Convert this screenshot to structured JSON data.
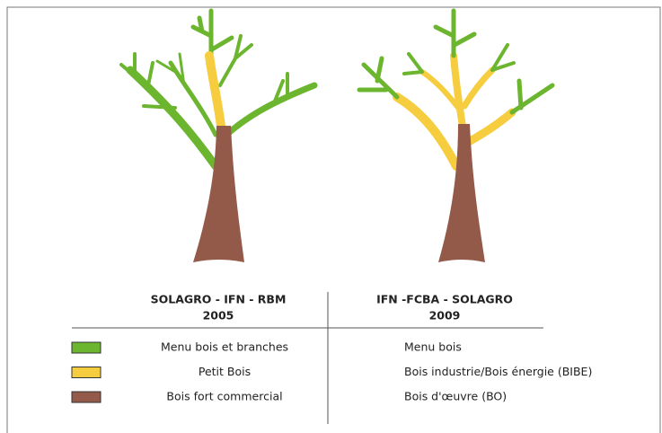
{
  "columns": [
    {
      "title": "SOLAGRO - IFN - RBM",
      "year": "2005"
    },
    {
      "title": "IFN -FCBA - SOLAGRO",
      "year": "2009"
    }
  ],
  "legend": [
    {
      "color": "#6cb52f",
      "labels": [
        "Menu bois et branches",
        "Menu bois"
      ]
    },
    {
      "color": "#f6cd3f",
      "labels": [
        "Petit Bois",
        "Bois industrie/Bois énergie (BIBE)"
      ]
    },
    {
      "color": "#935949",
      "labels": [
        "Bois fort commercial",
        "Bois d'œuvre (BO)"
      ]
    }
  ]
}
